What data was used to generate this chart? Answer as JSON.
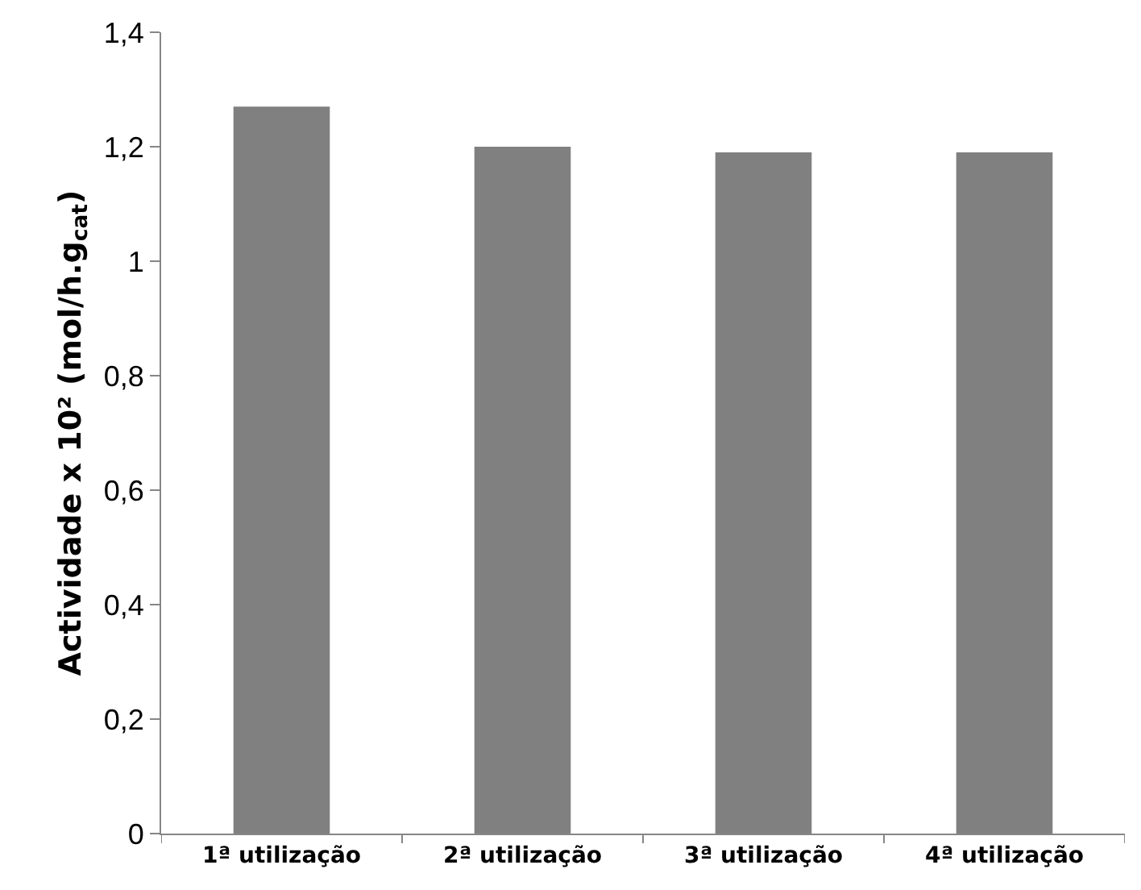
{
  "chart_data": {
    "type": "bar",
    "ylabel": "Actividade x 10² (mol/h.g$_{cat}$)",
    "categories": [
      "1ª utilização",
      "2ª utilização",
      "3ª utilização",
      "4ª utilização"
    ],
    "values": [
      1.27,
      1.2,
      1.19,
      1.19
    ],
    "color": "#808080",
    "ylim": [
      0,
      1.4
    ],
    "yticks": [
      0,
      {
        "value": 0.2,
        "label": "0,2"
      },
      {
        "value": 0.4,
        "label": "0,4"
      },
      {
        "value": 0.6,
        "label": "0,6"
      },
      {
        "value": 0.8,
        "label": "0,8"
      },
      1,
      {
        "value": 1.2,
        "label": "1,2"
      },
      {
        "value": 1.4,
        "label": "1,4"
      }
    ]
  }
}
